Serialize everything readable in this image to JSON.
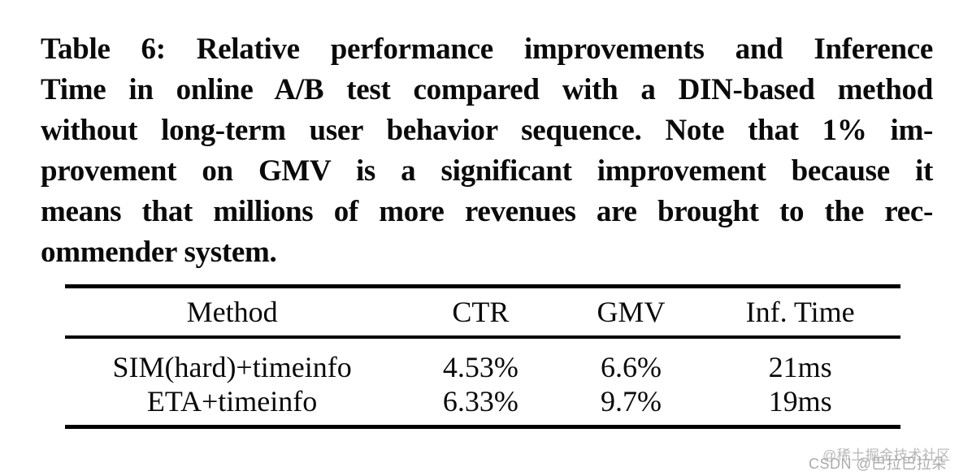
{
  "caption": {
    "lines": [
      "Table 6: Relative performance improvements and Inference",
      "Time in online A/B test compared with a DIN-based method",
      "without long-term user behavior sequence. Note that 1% im-",
      "provement on GMV is a significant improvement because it",
      "means that millions of more revenues are brought to the rec-",
      "ommender system."
    ]
  },
  "table": {
    "columns": [
      "Method",
      "CTR",
      "GMV",
      "Inf. Time"
    ],
    "rows": [
      {
        "cells": [
          "SIM(hard)+timeinfo",
          "4.53%",
          "6.6%",
          "21ms"
        ]
      },
      {
        "cells": [
          "ETA+timeinfo",
          "6.33%",
          "9.7%",
          "19ms"
        ]
      }
    ]
  },
  "watermarks": {
    "juejin": "@稀土掘金技术社区",
    "csdn": "CSDN @巴拉巴拉朵"
  },
  "colors": {
    "text": "#0a0a0a",
    "rule": "#000000",
    "watermark_juejin": "#b9b9b9",
    "watermark_csdn": "#ababab",
    "background": "#ffffff"
  }
}
